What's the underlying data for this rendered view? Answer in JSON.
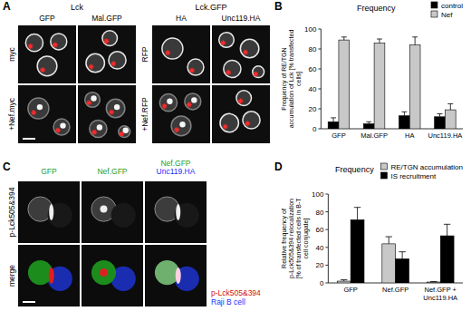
{
  "panel_labels": [
    "A",
    "B",
    "C",
    "D"
  ],
  "images": {
    "A": {
      "group_headers": [
        "Lck",
        "Lck.GFP"
      ],
      "column_headers": [
        "GFP",
        "Mal.GFP",
        "HA",
        "Unc119.HA"
      ],
      "row_labels_left": [
        "myc",
        "+Nef.myc"
      ],
      "row_labels_right": [
        "RFP",
        "+Nef.RFP"
      ]
    },
    "C": {
      "column_headers": [
        [
          {
            "text": "GFP",
            "color": "#1fa01f"
          }
        ],
        [
          {
            "text": "Nef.GFP",
            "color": "#1fa01f"
          }
        ],
        [
          {
            "text": "Nef.GFP",
            "color": "#1fa01f"
          },
          {
            "text": "Unc119.HA",
            "color": "#1a2cff"
          }
        ]
      ],
      "row_labels": [
        "p-Lck505&394",
        "merge"
      ],
      "legend": [
        {
          "text": "p-Lck505&394",
          "color": "#d01010"
        },
        {
          "text": "Raji B cell",
          "color": "#1a2cff"
        }
      ]
    }
  },
  "chart_data": [
    {
      "type": "bar",
      "title": "Frequency",
      "y_label": "Frequency of RE/TGN accumulation of Lck [% transfected cells]",
      "categories": [
        "GFP",
        "Mal.GFP",
        "HA",
        "Unc119.HA"
      ],
      "series": [
        {
          "name": "control",
          "color": "#000000",
          "values": [
            7,
            5,
            13,
            12
          ],
          "errors": [
            4,
            2,
            4,
            3
          ]
        },
        {
          "name": "Nef",
          "color": "#c8c8c8",
          "values": [
            89,
            86,
            84,
            19
          ],
          "errors": [
            3,
            4,
            8,
            6
          ]
        }
      ],
      "ylim": [
        0,
        100
      ],
      "yticks": [
        0,
        20,
        40,
        60,
        80,
        100
      ],
      "legend": "top-right"
    },
    {
      "type": "bar",
      "title": "Frequency",
      "y_label": "Relative frequency of p-Lck505&394 relocalization [% of transfected cells in B-T cell conjugate]",
      "categories": [
        "GFP",
        "Nef.GFP",
        "Nef.GFP + Unc119.HA"
      ],
      "series": [
        {
          "name": "RE/TGN accumulation",
          "color": "#c8c8c8",
          "values": [
            2,
            44,
            1
          ],
          "errors": [
            1.5,
            8,
            0.5
          ]
        },
        {
          "name": "IS recruitment",
          "color": "#000000",
          "values": [
            71,
            27,
            53
          ],
          "errors": [
            14,
            8,
            13
          ]
        }
      ],
      "ylim": [
        0,
        100
      ],
      "yticks": [
        0,
        20,
        40,
        60,
        80,
        100
      ],
      "legend": "top-right"
    }
  ]
}
